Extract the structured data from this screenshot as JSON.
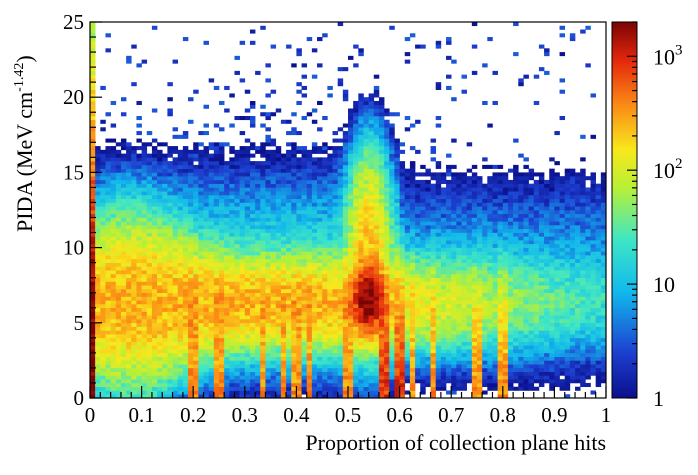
{
  "chart_data": {
    "type": "heatmap",
    "title": "",
    "xlabel": "Proportion of collection plane hits",
    "ylabel": "PIDA (MeV cm",
    "ylabel_sup": "-1.42",
    "ylabel_suffix": ")",
    "xlim": [
      0,
      1
    ],
    "ylim": [
      0,
      25
    ],
    "x_ticks": [
      0,
      0.1,
      0.2,
      0.3,
      0.4,
      0.5,
      0.6,
      0.7,
      0.8,
      0.9,
      1
    ],
    "x_tick_labels": [
      "0",
      "0.1",
      "0.2",
      "0.3",
      "0.4",
      "0.5",
      "0.6",
      "0.7",
      "0.8",
      "0.9",
      "1"
    ],
    "y_ticks": [
      0,
      5,
      10,
      15,
      20,
      25
    ],
    "y_tick_labels": [
      "0",
      "5",
      "10",
      "15",
      "20",
      "25"
    ],
    "z_scale": "log",
    "zlim": [
      1,
      2000
    ],
    "colorbar_ticks": [
      {
        "value": 1,
        "base": "1",
        "exp": ""
      },
      {
        "value": 10,
        "base": "10",
        "exp": ""
      },
      {
        "value": 100,
        "base": "10",
        "exp": "2"
      },
      {
        "value": 1000,
        "base": "10",
        "exp": "3"
      }
    ],
    "colormap": "rainbow (dark blue to dark red)",
    "bins": {
      "x": 100,
      "y": 100
    },
    "features": {
      "main_band_center_y": 6.3,
      "peak_region_x": 0.54,
      "peak_region_y": 6.5,
      "spike_columns_x": [
        0.0,
        0.2,
        0.25,
        0.333,
        0.375,
        0.4,
        0.429,
        0.5,
        0.571,
        0.6,
        0.625,
        0.667,
        0.75,
        0.8
      ]
    }
  }
}
